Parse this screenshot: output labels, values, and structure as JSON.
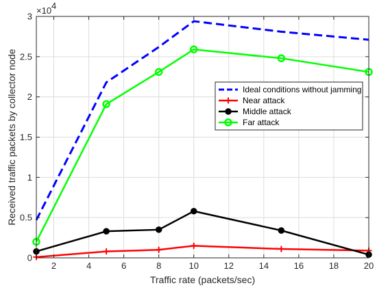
{
  "chart_data": {
    "type": "line",
    "title": "",
    "xlabel": "Traffic rate (packets/sec)",
    "ylabel": "Received traffic packets by collector node",
    "y_multiplier": "×10",
    "y_multiplier_exp": "4",
    "xlim": [
      1,
      20
    ],
    "ylim": [
      0,
      30000
    ],
    "xticks": [
      2,
      4,
      6,
      8,
      10,
      12,
      14,
      16,
      18,
      20
    ],
    "yticks": [
      0,
      5000,
      10000,
      15000,
      20000,
      25000,
      30000
    ],
    "ytick_labels": [
      "0",
      "0.5",
      "1",
      "1.5",
      "2",
      "2.5",
      "3"
    ],
    "grid": true,
    "legend_position": "right",
    "x": [
      1,
      5,
      8,
      10,
      15,
      20
    ],
    "series": [
      {
        "name": "Ideal conditions without jamming",
        "color": "#0000ff",
        "style": "dashed",
        "marker": "none",
        "values": [
          4700,
          21800,
          26200,
          29400,
          28100,
          27100
        ]
      },
      {
        "name": "Near attack",
        "color": "#ff0000",
        "style": "solid",
        "marker": "plus",
        "values": [
          100,
          800,
          1000,
          1500,
          1100,
          900
        ]
      },
      {
        "name": "Middle attack",
        "color": "#000000",
        "style": "solid",
        "marker": "filled-circle",
        "values": [
          800,
          3300,
          3500,
          5800,
          3400,
          400
        ]
      },
      {
        "name": "Far attack",
        "color": "#00ff00",
        "style": "solid",
        "marker": "open-circle",
        "values": [
          2000,
          19100,
          23100,
          25900,
          24800,
          23100
        ]
      }
    ]
  }
}
